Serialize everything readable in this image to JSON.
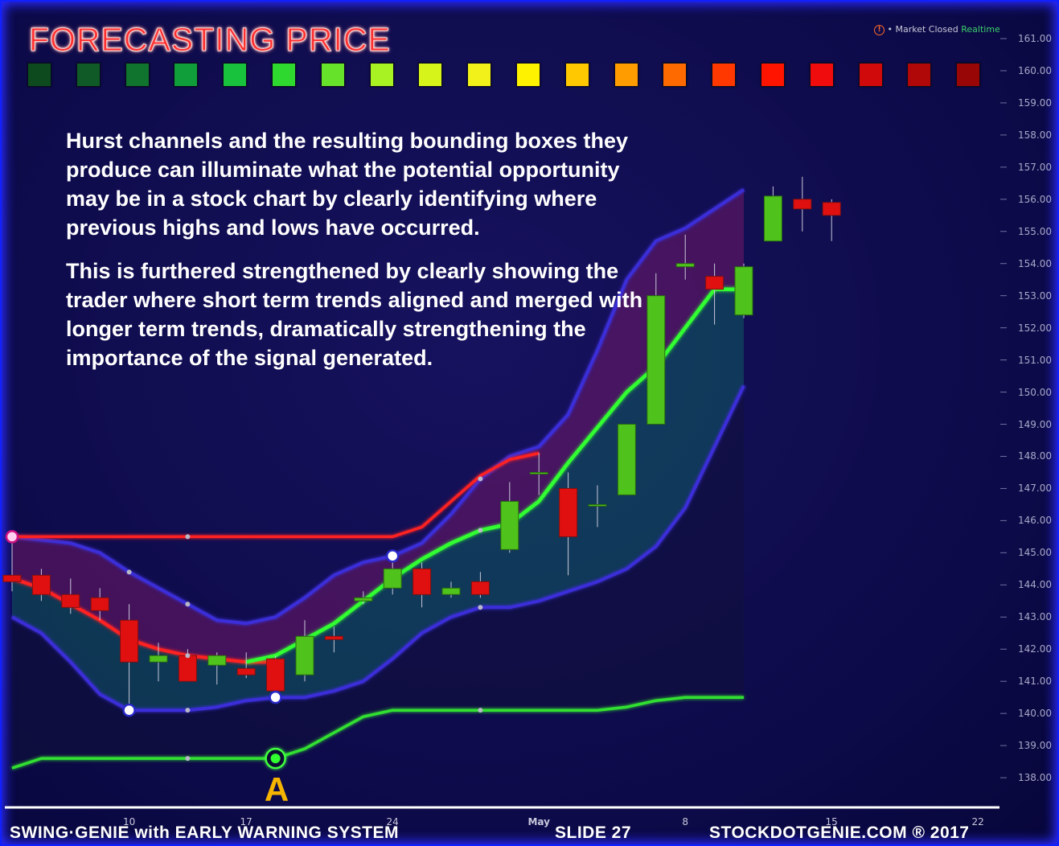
{
  "title": "FORECASTING PRICE",
  "status": {
    "market": "Market Closed",
    "realtime": "Realtime"
  },
  "swatch_colors": [
    "#0d4a1e",
    "#0f5a26",
    "#10732e",
    "#109e3a",
    "#18c23c",
    "#2ed82e",
    "#66e22a",
    "#a8f224",
    "#d6f41a",
    "#f2f21a",
    "#fff200",
    "#ffc800",
    "#ff9c00",
    "#ff6a00",
    "#ff3800",
    "#ff1400",
    "#f00c0c",
    "#d00a0a",
    "#b00808",
    "#980606"
  ],
  "paragraphs": [
    "Hurst channels and the resulting bounding boxes they produce can illuminate what the potential opportunity may be in a stock chart by clearly identifying where previous highs and lows have occurred.",
    "This is furthered strengthened by clearly showing the trader where short term trends aligned and merged with longer term trends, dramatically strengthening the importance of the signal generated."
  ],
  "marker_a": "A",
  "footer": {
    "left": "SWING·GENIE with  EARLY WARNING SYSTEM",
    "slide": "SLIDE 27",
    "right": "STOCKDOTGENIE.COM ® 2017"
  },
  "chart_data": {
    "type": "candlestick",
    "y_axis": {
      "range": [
        137.3,
        161.6
      ],
      "ticks": [
        "161.00",
        "160.00",
        "159.00",
        "158.00",
        "157.00",
        "156.00",
        "155.00",
        "154.00",
        "153.00",
        "152.00",
        "151.00",
        "150.00",
        "149.00",
        "148.00",
        "147.00",
        "146.00",
        "145.00",
        "144.00",
        "143.00",
        "142.00",
        "141.00",
        "140.00",
        "139.00",
        "138.00"
      ]
    },
    "x_axis": {
      "range": [
        1,
        62
      ],
      "ticks": [
        {
          "label": "10",
          "x": 9,
          "bold": false
        },
        {
          "label": "17",
          "x": 17,
          "bold": false
        },
        {
          "label": "24",
          "x": 27,
          "bold": false
        },
        {
          "label": "May",
          "x": 37,
          "bold": true
        },
        {
          "label": "8",
          "x": 47,
          "bold": false
        },
        {
          "label": "15",
          "x": 57,
          "bold": false
        },
        {
          "label": "22",
          "x": 67,
          "bold": false
        }
      ]
    },
    "candles": [
      {
        "x": 1,
        "open": 144.3,
        "high": 145.3,
        "low": 143.8,
        "close": 144.1
      },
      {
        "x": 3,
        "open": 144.3,
        "high": 144.5,
        "low": 143.5,
        "close": 143.7
      },
      {
        "x": 5,
        "open": 143.7,
        "high": 144.2,
        "low": 143.1,
        "close": 143.3
      },
      {
        "x": 7,
        "open": 143.6,
        "high": 143.9,
        "low": 142.9,
        "close": 143.2
      },
      {
        "x": 9,
        "open": 142.9,
        "high": 143.4,
        "low": 140.2,
        "close": 141.6
      },
      {
        "x": 11,
        "open": 141.6,
        "high": 142.2,
        "low": 141.0,
        "close": 141.8
      },
      {
        "x": 13,
        "open": 141.8,
        "high": 142.0,
        "low": 141.0,
        "close": 141.0
      },
      {
        "x": 15,
        "open": 141.5,
        "high": 141.9,
        "low": 140.9,
        "close": 141.8
      },
      {
        "x": 17,
        "open": 141.4,
        "high": 141.9,
        "low": 141.1,
        "close": 141.2
      },
      {
        "x": 19,
        "open": 141.7,
        "high": 141.8,
        "low": 140.7,
        "close": 140.7
      },
      {
        "x": 21,
        "open": 141.2,
        "high": 142.9,
        "low": 141.0,
        "close": 142.4
      },
      {
        "x": 23,
        "open": 142.4,
        "high": 142.7,
        "low": 141.9,
        "close": 142.3
      },
      {
        "x": 25,
        "open": 143.5,
        "high": 143.8,
        "low": 143.4,
        "close": 143.6
      },
      {
        "x": 27,
        "open": 143.9,
        "high": 144.7,
        "low": 143.7,
        "close": 144.5
      },
      {
        "x": 29,
        "open": 144.5,
        "high": 144.7,
        "low": 143.3,
        "close": 143.7
      },
      {
        "x": 31,
        "open": 143.7,
        "high": 144.1,
        "low": 143.6,
        "close": 143.9
      },
      {
        "x": 33,
        "open": 144.1,
        "high": 144.4,
        "low": 143.6,
        "close": 143.7
      },
      {
        "x": 35,
        "open": 145.1,
        "high": 147.2,
        "low": 145.0,
        "close": 146.6
      },
      {
        "x": 37,
        "open": 147.5,
        "high": 148.1,
        "low": 146.8,
        "close": 147.5
      },
      {
        "x": 39,
        "open": 147.0,
        "high": 147.5,
        "low": 144.3,
        "close": 145.5
      },
      {
        "x": 41,
        "open": 146.5,
        "high": 147.1,
        "low": 145.8,
        "close": 146.5
      },
      {
        "x": 43,
        "open": 146.8,
        "high": 149.0,
        "low": 146.8,
        "close": 149.0
      },
      {
        "x": 45,
        "open": 149.0,
        "high": 153.7,
        "low": 149.0,
        "close": 153.0
      },
      {
        "x": 47,
        "open": 153.9,
        "high": 154.9,
        "low": 153.5,
        "close": 154.0
      },
      {
        "x": 49,
        "open": 153.6,
        "high": 154.0,
        "low": 152.1,
        "close": 153.2
      },
      {
        "x": 51,
        "open": 152.4,
        "high": 154.0,
        "low": 152.3,
        "close": 153.9
      },
      {
        "x": 53,
        "open": 154.7,
        "high": 156.4,
        "low": 154.7,
        "close": 156.1
      },
      {
        "x": 55,
        "open": 156.0,
        "high": 156.7,
        "low": 155.0,
        "close": 155.7
      },
      {
        "x": 57,
        "open": 155.9,
        "high": 156.0,
        "low": 154.7,
        "close": 155.5
      }
    ],
    "series": [
      {
        "role": "upper-band-long",
        "color": "#3b2ed8",
        "x": [
          1,
          3,
          5,
          7,
          9,
          11,
          13,
          15,
          17,
          19,
          21,
          23,
          25,
          27,
          29,
          31,
          33,
          35,
          37,
          39,
          41,
          43,
          45,
          47,
          49,
          51
        ],
        "y": [
          145.5,
          145.4,
          145.3,
          145.0,
          144.4,
          143.9,
          143.4,
          142.9,
          142.8,
          143.0,
          143.6,
          144.3,
          144.7,
          144.9,
          145.3,
          146.2,
          147.3,
          148.0,
          148.3,
          149.3,
          151.3,
          153.5,
          154.7,
          155.1,
          155.7,
          156.3
        ]
      },
      {
        "role": "lower-band-long",
        "color": "#3b2ed8",
        "x": [
          1,
          3,
          5,
          7,
          9,
          11,
          13,
          15,
          17,
          19,
          21,
          23,
          25,
          27,
          29,
          31,
          33,
          35,
          37,
          39,
          41,
          43,
          45,
          47,
          49,
          51
        ],
        "y": [
          143.0,
          142.5,
          141.6,
          140.6,
          140.1,
          140.1,
          140.1,
          140.2,
          140.4,
          140.5,
          140.5,
          140.7,
          141.0,
          141.7,
          142.5,
          143.0,
          143.3,
          143.3,
          143.5,
          143.8,
          144.1,
          144.5,
          145.2,
          146.4,
          148.3,
          150.2
        ]
      },
      {
        "role": "upper-envelope",
        "color": "#ff2020",
        "x": [
          1,
          3,
          5,
          7,
          9,
          11,
          13,
          15,
          17,
          19,
          21,
          23,
          25,
          27,
          29,
          31,
          33,
          35,
          37
        ],
        "y": [
          145.5,
          145.5,
          145.5,
          145.5,
          145.5,
          145.5,
          145.5,
          145.5,
          145.5,
          145.5,
          145.5,
          145.5,
          145.5,
          145.5,
          145.8,
          146.6,
          147.4,
          147.9,
          148.1
        ]
      },
      {
        "role": "red-trend",
        "color": "#ff2020",
        "x": [
          1,
          3,
          5,
          7,
          9,
          11,
          13,
          15,
          17,
          19
        ],
        "y": [
          144.2,
          143.9,
          143.4,
          142.9,
          142.3,
          142.0,
          141.8,
          141.7,
          141.6,
          141.6
        ]
      },
      {
        "role": "green-trend",
        "color": "#30ff30",
        "x": [
          17,
          19,
          21,
          23,
          25,
          27,
          29,
          31,
          33,
          35,
          37,
          39,
          41,
          43,
          45,
          47,
          49,
          51
        ],
        "y": [
          141.6,
          141.8,
          142.3,
          142.8,
          143.5,
          144.2,
          144.8,
          145.3,
          145.7,
          145.9,
          146.6,
          147.8,
          148.9,
          150.0,
          150.8,
          152.0,
          153.2,
          153.2
        ]
      },
      {
        "role": "lower-envelope",
        "color": "#30e030",
        "x": [
          1,
          3,
          5,
          7,
          9,
          11,
          13,
          15,
          17,
          19,
          21,
          23,
          25,
          27,
          29,
          31,
          33,
          35,
          37,
          39,
          41,
          43,
          45,
          47,
          49,
          51
        ],
        "y": [
          138.3,
          138.6,
          138.6,
          138.6,
          138.6,
          138.6,
          138.6,
          138.6,
          138.6,
          138.6,
          138.9,
          139.4,
          139.9,
          140.1,
          140.1,
          140.1,
          140.1,
          140.1,
          140.1,
          140.1,
          140.1,
          140.2,
          140.4,
          140.5,
          140.5,
          140.5
        ]
      }
    ],
    "pivot_markers": [
      {
        "x": 1,
        "y": 145.5
      },
      {
        "x": 9,
        "y": 140.1
      },
      {
        "x": 19,
        "y": 140.5
      },
      {
        "x": 27,
        "y": 144.9
      }
    ],
    "signal_marker": {
      "x": 19,
      "y": 138.6
    }
  }
}
